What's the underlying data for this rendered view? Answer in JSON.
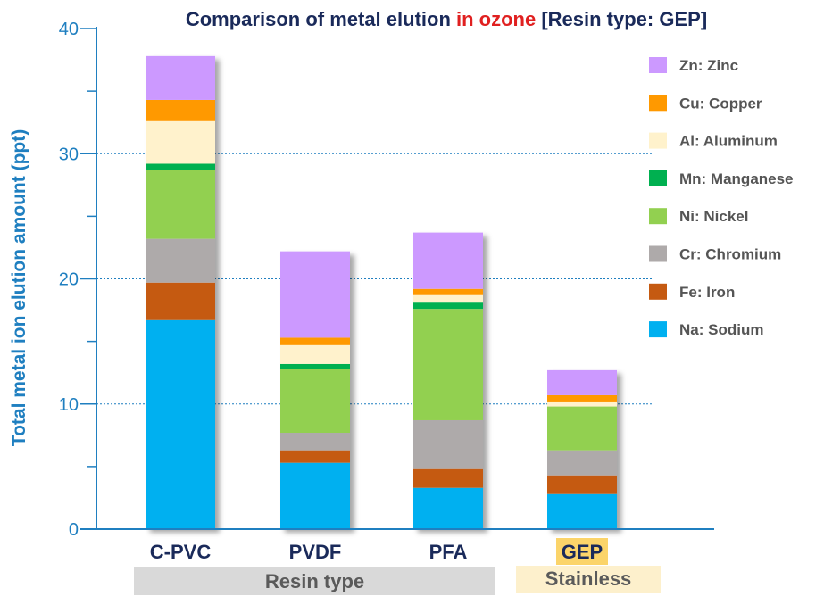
{
  "chart_data": {
    "type": "bar",
    "stacked": true,
    "title_parts": [
      {
        "text": "Comparison of metal elution ",
        "color": "#1a2a5a"
      },
      {
        "text": "in ozone",
        "color": "#e02020"
      },
      {
        "text": " [Resin type: GEP]",
        "color": "#1a2a5a"
      }
    ],
    "ylabel": "Total metal ion elution amount (ppt)",
    "ylim": [
      0,
      40
    ],
    "yticks": [
      0,
      10,
      20,
      30,
      40
    ],
    "grid": "dotted at 10, 20, 30",
    "categories": [
      "C-PVC",
      "PVDF",
      "PFA",
      "GEP"
    ],
    "groups": [
      {
        "label": "Resin type",
        "categories": [
          "C-PVC",
          "PVDF",
          "PFA"
        ],
        "bg": "#d9d9d9"
      },
      {
        "label": "Stainless",
        "categories": [
          "GEP"
        ],
        "bg": "#fdf0cc"
      }
    ],
    "highlight_category": {
      "name": "GEP",
      "bg": "#fbd46a"
    },
    "legend_position": "right",
    "series": [
      {
        "name": "Na: Sodium",
        "color": "#00b0f0",
        "values": [
          16.7,
          5.3,
          3.3,
          2.8
        ]
      },
      {
        "name": "Fe: Iron",
        "color": "#c55a11",
        "values": [
          3.0,
          1.0,
          1.5,
          1.5
        ]
      },
      {
        "name": "Cr: Chromium",
        "color": "#aeaaaa",
        "values": [
          3.5,
          1.4,
          3.9,
          2.0
        ]
      },
      {
        "name": "Ni: Nickel",
        "color": "#92d050",
        "values": [
          5.5,
          5.1,
          8.9,
          3.5
        ]
      },
      {
        "name": "Mn: Manganese",
        "color": "#00b050",
        "values": [
          0.5,
          0.4,
          0.5,
          0.0
        ]
      },
      {
        "name": "Al: Aluminum",
        "color": "#fff2cc",
        "values": [
          3.4,
          1.5,
          0.6,
          0.4
        ]
      },
      {
        "name": "Cu: Copper",
        "color": "#ff9900",
        "values": [
          1.7,
          0.6,
          0.5,
          0.5
        ]
      },
      {
        "name": "Zn: Zinc",
        "color": "#cc99ff",
        "values": [
          3.5,
          6.9,
          4.5,
          2.0
        ]
      }
    ]
  }
}
